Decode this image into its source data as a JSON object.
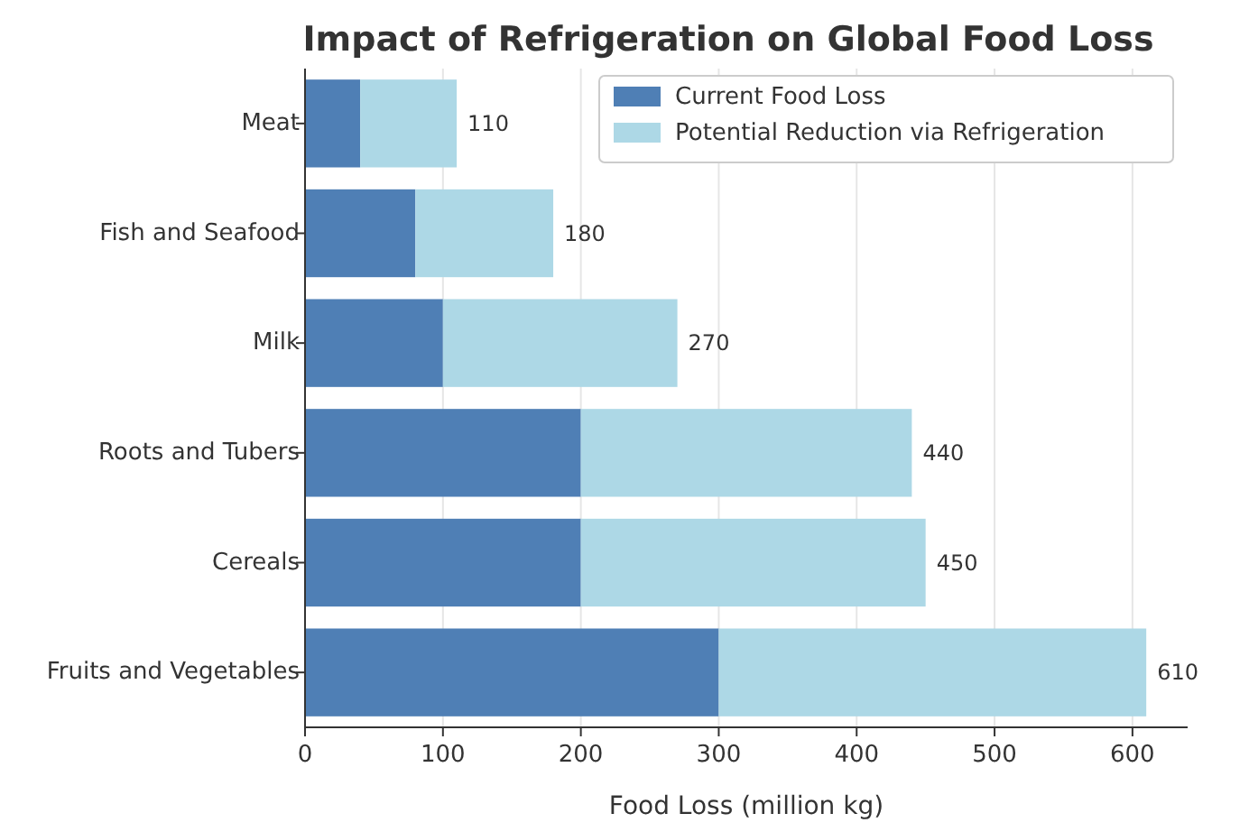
{
  "chart_data": {
    "type": "bar",
    "orientation": "horizontal",
    "stacked": true,
    "title": "Impact of Refrigeration on Global Food Loss",
    "xlabel": "Food Loss (million kg)",
    "categories": [
      "Meat",
      "Fish and Seafood",
      "Milk",
      "Roots and Tubers",
      "Cereals",
      "Fruits and Vegetables"
    ],
    "series": [
      {
        "name": "Current Food Loss",
        "color": "#4f7fb5",
        "values": [
          40,
          80,
          100,
          200,
          200,
          300
        ]
      },
      {
        "name": "Potential Reduction via Refrigeration",
        "color": "#add8e6",
        "values": [
          70,
          100,
          170,
          240,
          250,
          310
        ]
      }
    ],
    "totals": [
      "110",
      "180",
      "270",
      "440",
      "450",
      "610"
    ],
    "xlim": [
      0,
      640
    ],
    "xticks": [
      0,
      100,
      200,
      300,
      400,
      500,
      600
    ],
    "grid": "x",
    "legend": "top right"
  }
}
